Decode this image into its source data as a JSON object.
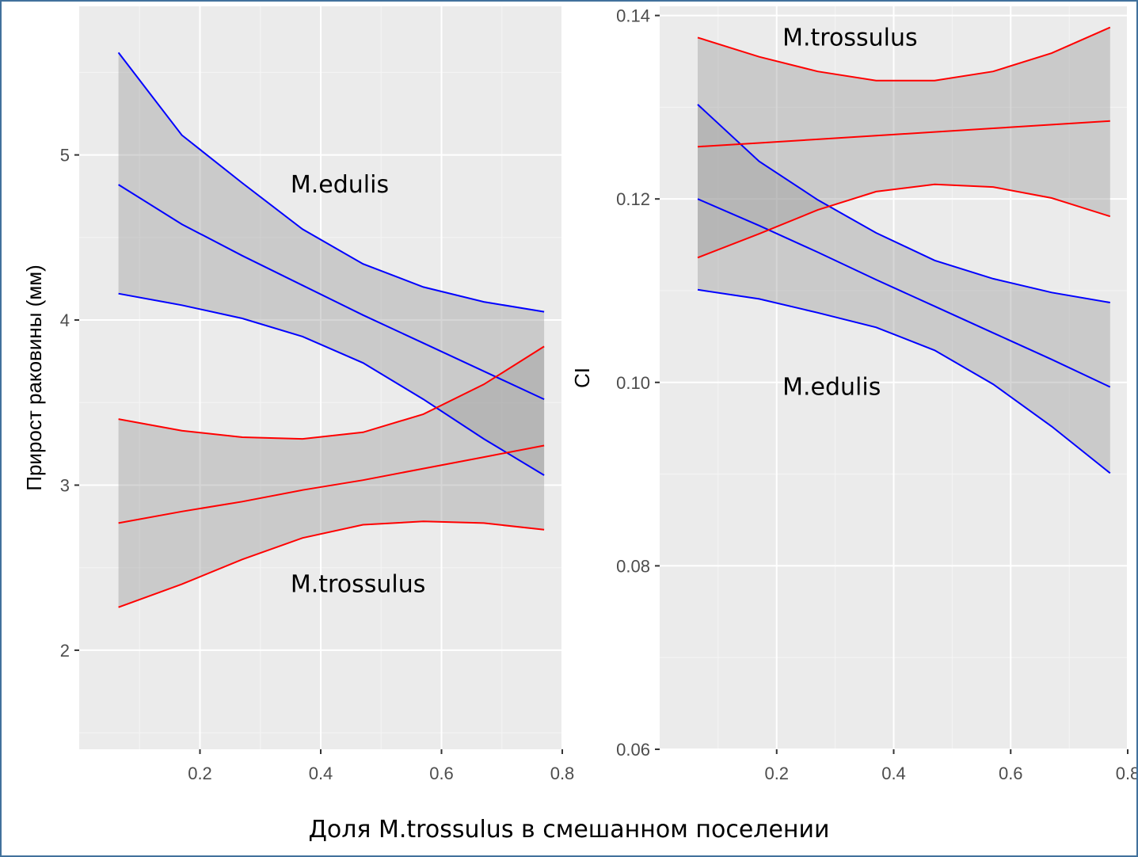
{
  "figure": {
    "xlabel": "Доля M.trossulus в смешанном поселении"
  },
  "chart_data": [
    {
      "type": "line",
      "panel": "left",
      "ylabel": "Прирост раковины (мм)",
      "xlim": [
        0.0,
        0.8
      ],
      "ylim": [
        1.4,
        5.9
      ],
      "xticks": [
        0.2,
        0.4,
        0.6,
        0.8
      ],
      "xtick_labels": [
        "0.2",
        "0.4",
        "0.6",
        "0.8"
      ],
      "yticks": [
        2,
        3,
        4,
        5
      ],
      "ytick_labels": [
        "2",
        "3",
        "4",
        "5"
      ],
      "grid": true,
      "series": [
        {
          "name": "M.edulis",
          "color": "#0000ff",
          "x": [
            0.065,
            0.17,
            0.27,
            0.37,
            0.47,
            0.57,
            0.67,
            0.77
          ],
          "y": [
            4.82,
            4.58,
            4.39,
            4.21,
            4.03,
            3.86,
            3.69,
            3.52
          ],
          "upper": [
            5.62,
            5.12,
            4.83,
            4.55,
            4.34,
            4.2,
            4.11,
            4.05
          ],
          "lower": [
            4.16,
            4.09,
            4.01,
            3.9,
            3.74,
            3.52,
            3.28,
            3.06
          ]
        },
        {
          "name": "M.trossulus",
          "color": "#ff0000",
          "x": [
            0.065,
            0.17,
            0.27,
            0.37,
            0.47,
            0.57,
            0.67,
            0.77
          ],
          "y": [
            2.77,
            2.84,
            2.9,
            2.97,
            3.03,
            3.1,
            3.17,
            3.24
          ],
          "upper": [
            3.4,
            3.33,
            3.29,
            3.28,
            3.32,
            3.43,
            3.61,
            3.84
          ],
          "lower": [
            2.26,
            2.4,
            2.55,
            2.68,
            2.76,
            2.78,
            2.77,
            2.73
          ]
        }
      ],
      "annotations": [
        {
          "text": "M.edulis",
          "x": 0.35,
          "y": 4.82
        },
        {
          "text": "M.trossulus",
          "x": 0.35,
          "y": 2.4
        }
      ]
    },
    {
      "type": "line",
      "panel": "right",
      "ylabel": "CI",
      "xlim": [
        0.0,
        0.8
      ],
      "ylim": [
        0.06,
        0.141
      ],
      "xticks": [
        0.2,
        0.4,
        0.6,
        0.8
      ],
      "xtick_labels": [
        "0.2",
        "0.4",
        "0.6",
        "0.8"
      ],
      "yticks": [
        0.06,
        0.08,
        0.1,
        0.12,
        0.14
      ],
      "ytick_labels": [
        "0.06",
        "0.08",
        "0.10",
        "0.12",
        "0.14"
      ],
      "grid": true,
      "series": [
        {
          "name": "M.edulis",
          "color": "#0000ff",
          "x": [
            0.065,
            0.17,
            0.27,
            0.37,
            0.47,
            0.57,
            0.67,
            0.77
          ],
          "y": [
            0.12,
            0.1171,
            0.1142,
            0.1112,
            0.1083,
            0.1054,
            0.1025,
            0.0995
          ],
          "upper": [
            0.1303,
            0.1241,
            0.1199,
            0.1163,
            0.1133,
            0.1113,
            0.1098,
            0.1087
          ],
          "lower": [
            0.1101,
            0.1091,
            0.1076,
            0.106,
            0.1035,
            0.0998,
            0.0952,
            0.0901
          ]
        },
        {
          "name": "M.trossulus",
          "color": "#ff0000",
          "x": [
            0.065,
            0.17,
            0.27,
            0.37,
            0.47,
            0.57,
            0.67,
            0.77
          ],
          "y": [
            0.1257,
            0.1261,
            0.1265,
            0.1269,
            0.1273,
            0.1277,
            0.1281,
            0.1285
          ],
          "upper": [
            0.1376,
            0.1355,
            0.1339,
            0.1329,
            0.1329,
            0.1339,
            0.1359,
            0.1387
          ],
          "lower": [
            0.1136,
            0.1162,
            0.1188,
            0.1208,
            0.1216,
            0.1213,
            0.1201,
            0.1181
          ]
        }
      ],
      "annotations": [
        {
          "text": "M.trossulus",
          "x": 0.21,
          "y": 0.1376
        },
        {
          "text": "M.edulis",
          "x": 0.21,
          "y": 0.0995
        }
      ]
    }
  ]
}
